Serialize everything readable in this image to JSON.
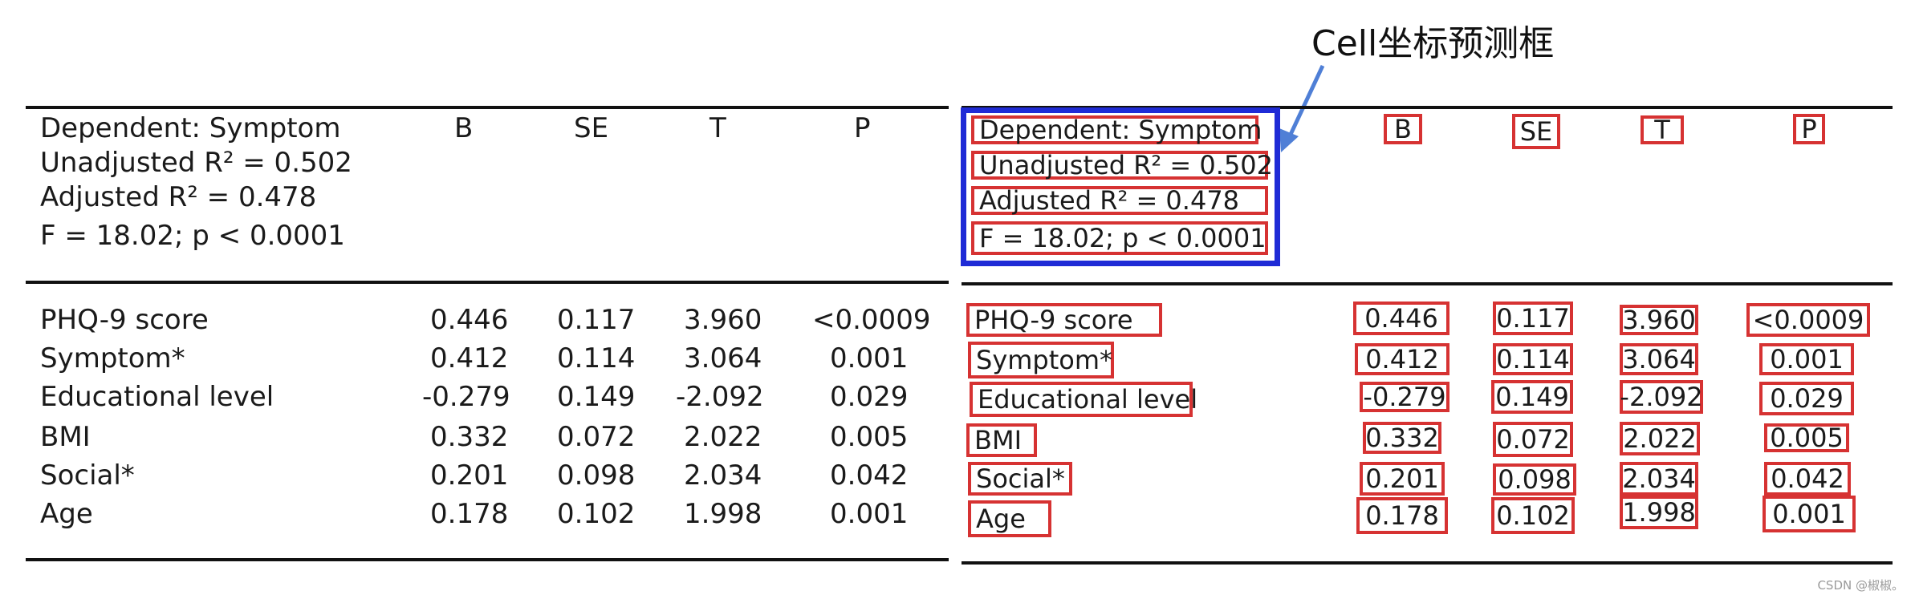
{
  "caption": "Cell坐标预测框",
  "watermark": "CSDN @椒椒。",
  "colors": {
    "cell_box": "#d63232",
    "header_box": "#1f2bd6",
    "arrow": "#4f7fd6"
  },
  "table": {
    "header_lines": [
      "Dependent: Symptom",
      "Unadjusted R² = 0.502",
      "Adjusted R² = 0.478",
      "F = 18.02; p < 0.0001"
    ],
    "columns": [
      "B",
      "SE",
      "T",
      "P"
    ],
    "rows": [
      {
        "label": "PHQ-9 score",
        "B": "0.446",
        "SE": "0.117",
        "T": "3.960",
        "P": "<0.0009"
      },
      {
        "label": "Symptom*",
        "B": "0.412",
        "SE": "0.114",
        "T": "3.064",
        "P": "0.001"
      },
      {
        "label": "Educational level",
        "B": "-0.279",
        "SE": "0.149",
        "T": "-2.092",
        "P": "0.029"
      },
      {
        "label": "BMI",
        "B": "0.332",
        "SE": "0.072",
        "T": "2.022",
        "P": "0.005"
      },
      {
        "label": "Social*",
        "B": "0.201",
        "SE": "0.098",
        "T": "2.034",
        "P": "0.042"
      },
      {
        "label": "Age",
        "B": "0.178",
        "SE": "0.102",
        "T": "1.998",
        "P": "0.001"
      }
    ]
  }
}
